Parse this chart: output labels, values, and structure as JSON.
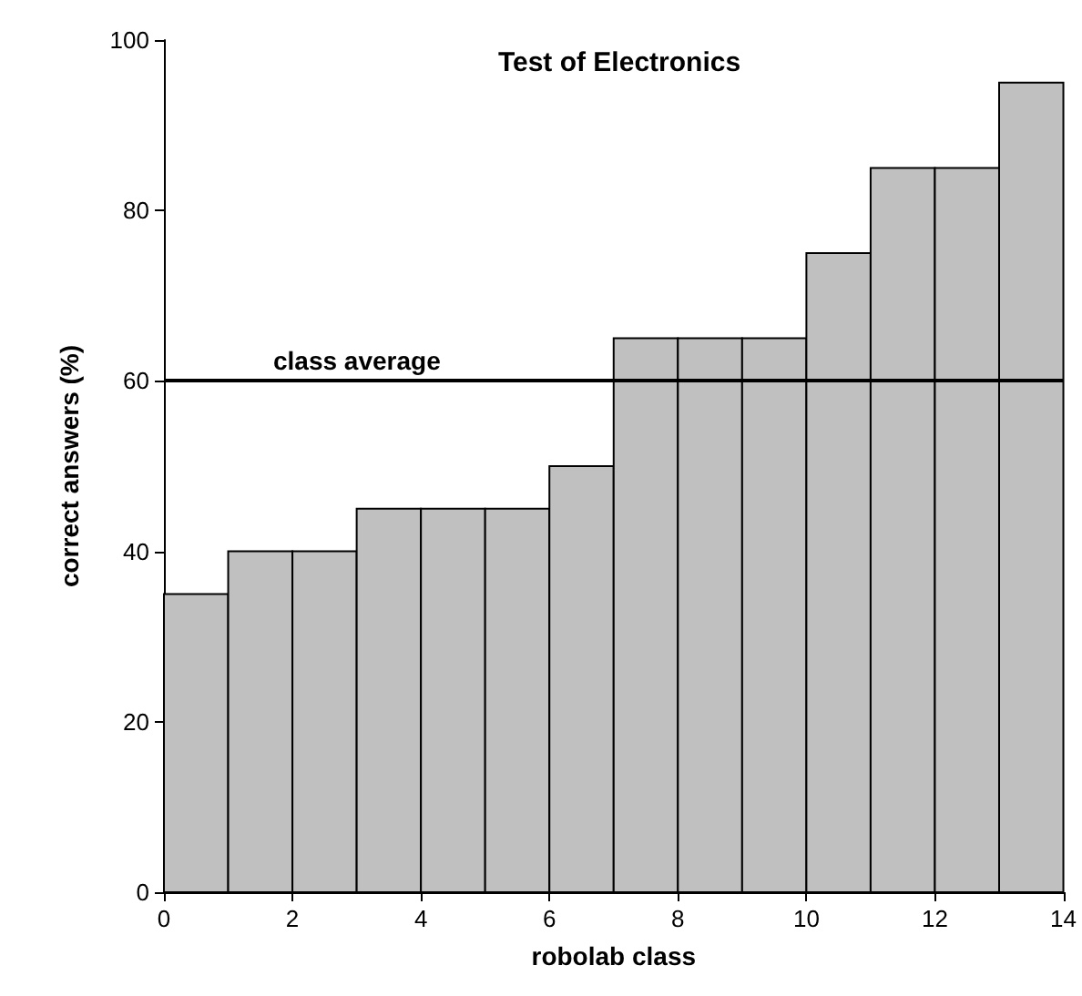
{
  "chart_data": {
    "type": "histogram",
    "title": "Test of Electronics",
    "xlabel": "robolab class",
    "ylabel": "correct answers (%)",
    "bins": [
      0,
      1,
      2,
      3,
      4,
      5,
      6,
      7,
      8,
      9,
      10,
      11,
      12,
      13,
      14
    ],
    "values": [
      35,
      40,
      40,
      45,
      45,
      45,
      50,
      65,
      65,
      65,
      75,
      85,
      85,
      95
    ],
    "color": "#c0c0c0",
    "xlim": [
      0,
      14
    ],
    "xticks": [
      0,
      2,
      4,
      6,
      8,
      10,
      12,
      14
    ],
    "ylim": [
      0,
      100
    ],
    "yticks": [
      0,
      20,
      40,
      60,
      80,
      100
    ],
    "ref_lines": [
      {
        "axis": "y",
        "value": 60,
        "label": "class average",
        "color": "#000000"
      }
    ],
    "grid": false
  }
}
